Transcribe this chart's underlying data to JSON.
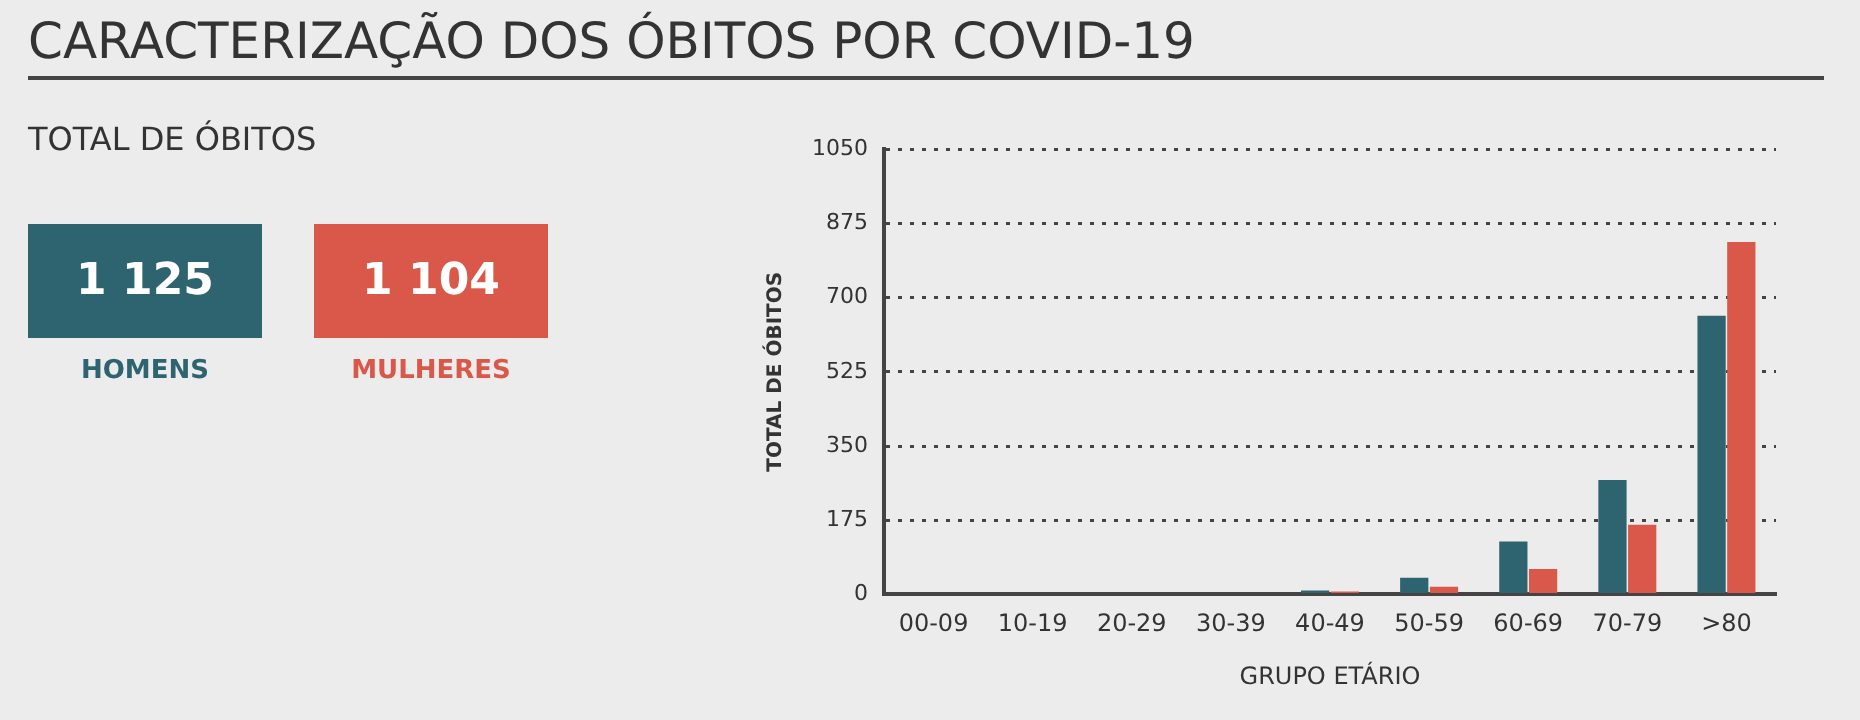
{
  "chart_data": [
    {
      "type": "other",
      "title": "CARACTERIZAÇÃO DOS ÓBITOS POR COVID-19",
      "subtitle": "TOTAL DE ÓBITOS",
      "categories": [
        "HOMENS",
        "MULHERES"
      ],
      "annotations": [
        "1 125",
        "1 104"
      ],
      "colors": [
        "#2e6470",
        "#d9584a"
      ]
    },
    {
      "type": "bar",
      "xlabel": "GRUPO ETÁRIO",
      "ylabel": "TOTAL DE ÓBITOS",
      "categories": [
        "00-09",
        "10-19",
        "20-29",
        "30-39",
        "40-49",
        "50-59",
        "60-69",
        "70-79",
        ">80"
      ],
      "series": [
        {
          "color": "#2e6470",
          "values": [
            0,
            0,
            0,
            0,
            9,
            39,
            125,
            270,
            657
          ]
        },
        {
          "color": "#d9584a",
          "values": [
            0,
            0,
            0,
            0,
            7,
            18,
            60,
            164,
            831
          ]
        }
      ],
      "ylim": [
        0,
        1050
      ],
      "yticks": [
        0,
        175,
        350,
        525,
        700,
        875,
        1050
      ],
      "grid": "y",
      "legend": false
    }
  ]
}
